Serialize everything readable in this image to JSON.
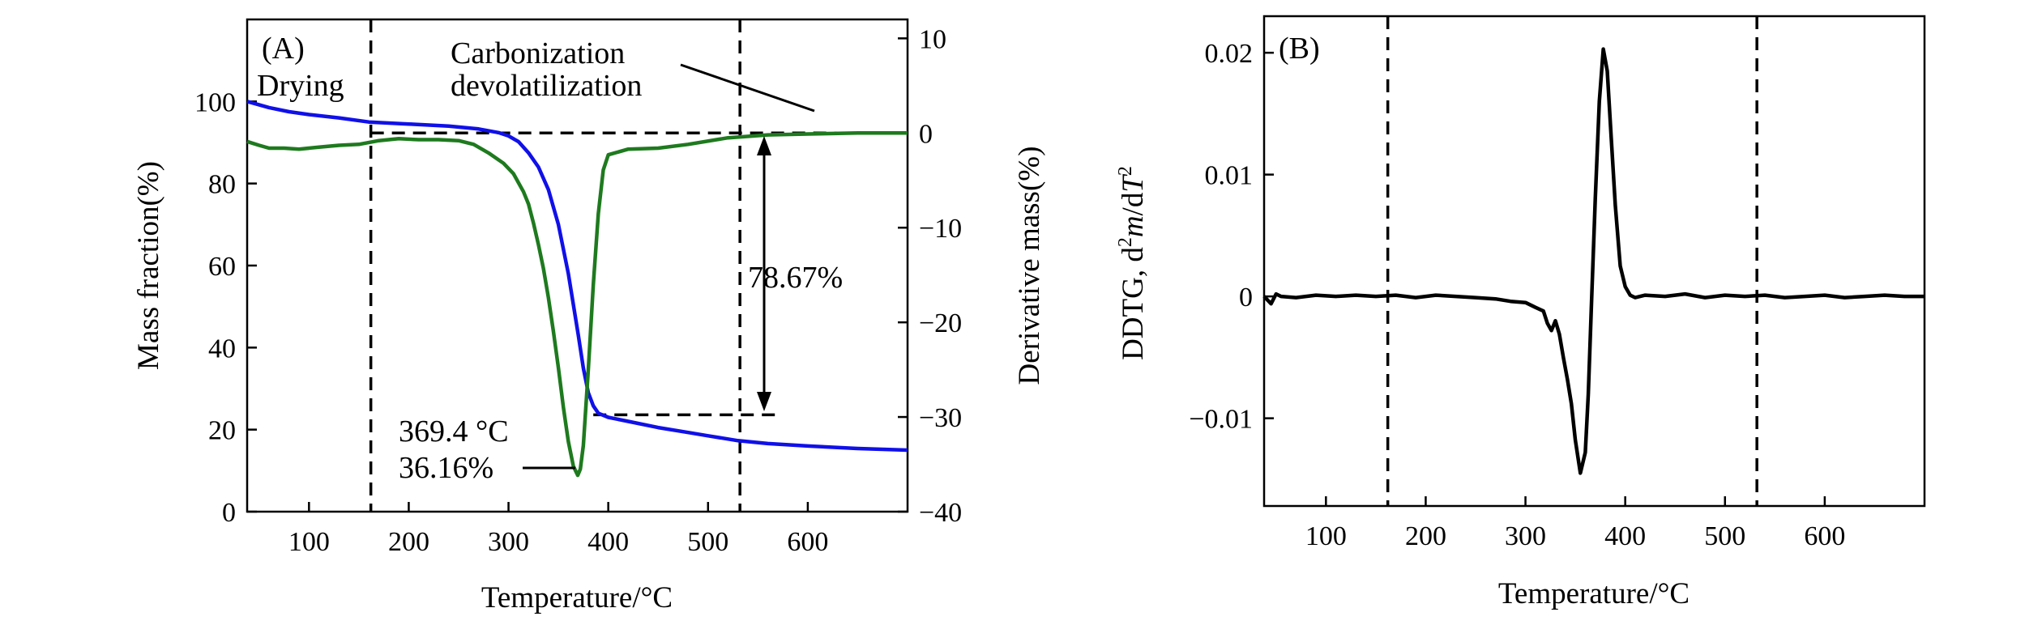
{
  "colors": {
    "mass": "#1010e8",
    "dtg": "#1e7a1e",
    "ddtg": "#000000"
  },
  "chart_data": [
    {
      "type": "line",
      "panel_label": "(A)",
      "xlabel": "Temperature/°C",
      "ylabel": "Mass fraction(%)",
      "y2label": "Derivative mass(%)",
      "xlim": [
        38,
        700
      ],
      "ylim": [
        0,
        120
      ],
      "y2lim": [
        -40,
        12
      ],
      "xticks": [
        100,
        200,
        300,
        400,
        500,
        600
      ],
      "yticks": [
        0,
        20,
        40,
        60,
        80,
        100
      ],
      "y2ticks": [
        -40,
        -30,
        -20,
        -10,
        0,
        10
      ],
      "series": [
        {
          "axis": "left",
          "color": "#1010e8",
          "x": [
            38,
            60,
            80,
            100,
            130,
            160,
            200,
            240,
            270,
            290,
            300,
            310,
            320,
            330,
            340,
            350,
            360,
            370,
            375,
            380,
            385,
            390,
            400,
            420,
            450,
            480,
            500,
            530,
            560,
            600,
            650,
            700
          ],
          "y": [
            100,
            98.5,
            97.5,
            96.8,
            96,
            95,
            94.5,
            94,
            93.3,
            92.4,
            91.6,
            90.2,
            87.5,
            84,
            78.5,
            70,
            58,
            43,
            35,
            29,
            25.8,
            24,
            23,
            22,
            20.5,
            19.3,
            18.5,
            17.3,
            16.6,
            16,
            15.4,
            15
          ]
        },
        {
          "axis": "right",
          "color": "#1e7a1e",
          "x": [
            38,
            50,
            60,
            75,
            90,
            110,
            130,
            150,
            170,
            190,
            210,
            230,
            250,
            265,
            280,
            295,
            305,
            315,
            320,
            325,
            330,
            335,
            340,
            345,
            350,
            355,
            360,
            365,
            369.4,
            372,
            375,
            380,
            385,
            390,
            395,
            400,
            420,
            450,
            480,
            520,
            560,
            600,
            650,
            700
          ],
          "y": [
            -0.9,
            -1.3,
            -1.6,
            -1.6,
            -1.7,
            -1.5,
            -1.3,
            -1.2,
            -0.8,
            -0.6,
            -0.7,
            -0.7,
            -0.8,
            -1.2,
            -2.1,
            -3.2,
            -4.3,
            -6.2,
            -7.5,
            -9.5,
            -11.8,
            -14.3,
            -17.4,
            -21,
            -24.8,
            -29,
            -32.6,
            -35.2,
            -36.16,
            -35.5,
            -33,
            -25,
            -16,
            -8.5,
            -3.9,
            -2.3,
            -1.7,
            -1.6,
            -1.2,
            -0.5,
            -0.2,
            -0.1,
            0,
            0
          ]
        }
      ],
      "annotations": {
        "drying": "Drying",
        "carbonization_line1": "Carbonization",
        "carbonization_line2": "devolatilization",
        "mass_loss": "78.67%",
        "peak_temp": "369.4 °C",
        "peak_value": "36.16%"
      },
      "vlines": [
        162,
        532
      ],
      "hlines": {
        "y2_zero": 0,
        "mass_residual": 23.6
      }
    },
    {
      "type": "line",
      "panel_label": "(B)",
      "xlabel": "Temperature/°C",
      "ylabel_prefix": "DDTG, d",
      "ylabel_sup1": "2",
      "ylabel_m": "m",
      "ylabel_mid": "/d",
      "ylabel_T": "T",
      "ylabel_sup2": "2",
      "xlim": [
        38,
        700
      ],
      "ylim": [
        -0.0172,
        0.023
      ],
      "xticks": [
        100,
        200,
        300,
        400,
        500,
        600
      ],
      "yticks": [
        -0.01,
        0,
        0.01,
        0.02
      ],
      "ytick_labels": [
        "−0.01",
        "0",
        "0.01",
        "0.02"
      ],
      "series": [
        {
          "color": "#000000",
          "x": [
            38,
            45,
            50,
            55,
            70,
            90,
            110,
            130,
            150,
            170,
            190,
            210,
            230,
            250,
            270,
            285,
            300,
            310,
            318,
            322,
            326,
            330,
            334,
            338,
            342,
            346,
            350,
            355,
            360,
            363,
            366,
            370,
            374,
            378,
            382,
            386,
            390,
            395,
            400,
            405,
            410,
            420,
            440,
            460,
            480,
            500,
            520,
            540,
            560,
            580,
            600,
            620,
            640,
            660,
            680,
            700
          ],
          "y": [
            0,
            -0.0006,
            0.0002,
            0,
            -0.0001,
            0.0001,
            0,
            0.0001,
            0,
            0.0001,
            -0.0001,
            0.0001,
            0,
            -0.0001,
            -0.0002,
            -0.0004,
            -0.0005,
            -0.0009,
            -0.0012,
            -0.0022,
            -0.0028,
            -0.002,
            -0.0031,
            -0.005,
            -0.0068,
            -0.0088,
            -0.0118,
            -0.0145,
            -0.0128,
            -0.008,
            -0.001,
            0.008,
            0.016,
            0.0203,
            0.0185,
            0.013,
            0.0075,
            0.0025,
            0.0008,
            0.0001,
            -0.0001,
            0.0001,
            0,
            0.0002,
            -0.0001,
            0.0001,
            0,
            0.0001,
            -0.0001,
            0,
            0.0001,
            -0.0001,
            0,
            0.0001,
            0,
            0
          ]
        }
      ],
      "vlines": [
        162,
        532
      ]
    }
  ]
}
